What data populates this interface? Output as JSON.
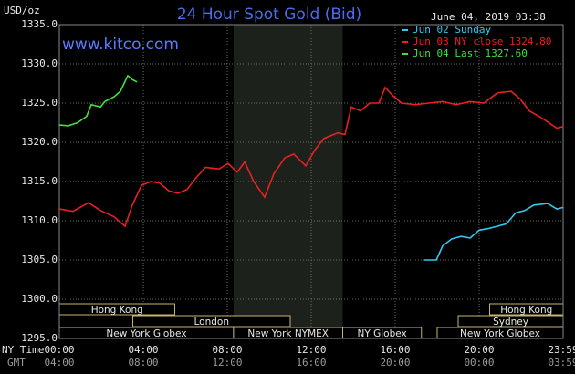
{
  "chart_data": {
    "type": "line",
    "title": "24 Hour Spot Gold (Bid)",
    "y_label": "USD/oz",
    "date": "June 04, 2019 03:38",
    "watermark": "www.kitco.com",
    "x_label": "NY Time",
    "x2_label": "GMT",
    "xlim": [
      0,
      24
    ],
    "ylim": [
      1295,
      1335
    ],
    "xticks": [
      {
        "value": 0,
        "label": "00:00"
      },
      {
        "value": 4,
        "label": "04:00"
      },
      {
        "value": 8,
        "label": "08:00"
      },
      {
        "value": 12,
        "label": "12:00"
      },
      {
        "value": 16,
        "label": "16:00"
      },
      {
        "value": 20,
        "label": "20:00"
      },
      {
        "value": 24,
        "label": "23:59"
      }
    ],
    "x2ticks": [
      {
        "value": 0,
        "label": "04:00"
      },
      {
        "value": 4,
        "label": "08:00"
      },
      {
        "value": 8,
        "label": "12:00"
      },
      {
        "value": 12,
        "label": "16:00"
      },
      {
        "value": 16,
        "label": "20:00"
      },
      {
        "value": 20,
        "label": "00:00"
      },
      {
        "value": 24,
        "label": "03:59"
      }
    ],
    "yticks": [
      {
        "value": 1295,
        "label": "1295.0"
      },
      {
        "value": 1300,
        "label": "1300.0"
      },
      {
        "value": 1305,
        "label": "1305.0"
      },
      {
        "value": 1310,
        "label": "1310.0"
      },
      {
        "value": 1315,
        "label": "1315.0"
      },
      {
        "value": 1320,
        "label": "1320.0"
      },
      {
        "value": 1325,
        "label": "1325.0"
      },
      {
        "value": 1330,
        "label": "1330.0"
      },
      {
        "value": 1335,
        "label": "1335.0"
      }
    ],
    "grid": true,
    "series": [
      {
        "name": "Jun 02 Sunday",
        "color": "#33c8f0",
        "x": [
          17.39,
          17.96,
          18.26,
          18.7,
          19.13,
          19.57,
          20,
          20.43,
          20.87,
          21.3,
          21.74,
          22.17,
          22.61,
          23.26,
          23.7,
          24
        ],
        "values": [
          1305,
          1305,
          1306.8,
          1307.7,
          1308,
          1307.8,
          1308.8,
          1309,
          1309.3,
          1309.6,
          1311,
          1311.3,
          1312,
          1312.2,
          1311.5,
          1311.7
        ]
      },
      {
        "name": "Jun 03 NY close 1324.80",
        "color": "#e82020",
        "x": [
          0,
          0.65,
          1.39,
          1.96,
          2.61,
          3.13,
          3.48,
          3.91,
          4.35,
          4.78,
          5.22,
          5.65,
          6.09,
          6.52,
          6.96,
          7.61,
          8.04,
          8.48,
          8.83,
          9.26,
          9.78,
          10.22,
          10.74,
          11.17,
          11.74,
          12.17,
          12.61,
          13.26,
          13.61,
          13.91,
          14.35,
          14.78,
          15.22,
          15.52,
          15.87,
          16.3,
          16.96,
          17.61,
          18.26,
          18.91,
          19.57,
          20.22,
          20.87,
          21.52,
          21.96,
          22.39,
          23.04,
          23.7,
          24
        ],
        "values": [
          1311.5,
          1311.2,
          1312.3,
          1311.3,
          1310.5,
          1309.3,
          1312,
          1314.5,
          1315,
          1314.8,
          1313.8,
          1313.5,
          1314,
          1315.5,
          1316.8,
          1316.6,
          1317.3,
          1316.2,
          1317.5,
          1315,
          1313,
          1316,
          1318,
          1318.5,
          1317,
          1319,
          1320.5,
          1321.2,
          1321,
          1324.5,
          1324,
          1325,
          1325,
          1327,
          1326,
          1325,
          1324.8,
          1325,
          1325.2,
          1324.8,
          1325.2,
          1325,
          1326.3,
          1326.5,
          1325.5,
          1324,
          1323,
          1321.8,
          1322
        ]
      },
      {
        "name": "Jun 04 Last 1327.60",
        "color": "#3ee03e",
        "x": [
          0,
          0.43,
          0.87,
          1.3,
          1.52,
          1.96,
          2.17,
          2.61,
          2.91,
          3.26,
          3.48,
          3.7
        ],
        "values": [
          1322.2,
          1322.1,
          1322.5,
          1323.3,
          1324.8,
          1324.5,
          1325.2,
          1325.8,
          1326.5,
          1328.5,
          1328,
          1327.7
        ]
      }
    ],
    "shaded": {
      "label": "New York NYMEX",
      "start": 8.3,
      "end": 13.5
    },
    "sessions": [
      {
        "label": "Hong Kong",
        "start": 0,
        "end": 5.5,
        "row": 0
      },
      {
        "label": "Hong Kong",
        "start": 20.5,
        "end": 24,
        "row": 0
      },
      {
        "label": "London",
        "start": 3.5,
        "end": 11,
        "row": 1
      },
      {
        "label": "Sydney",
        "start": 19,
        "end": 24,
        "row": 1
      },
      {
        "label": "New York Globex",
        "start": 0,
        "end": 8.3,
        "row": 2
      },
      {
        "label": "New York NYMEX",
        "start": 8.3,
        "end": 13.5,
        "row": 2
      },
      {
        "label": "NY Globex",
        "start": 13.5,
        "end": 17.25,
        "row": 2
      },
      {
        "label": "New York Globex",
        "start": 18,
        "end": 24,
        "row": 2
      }
    ]
  }
}
